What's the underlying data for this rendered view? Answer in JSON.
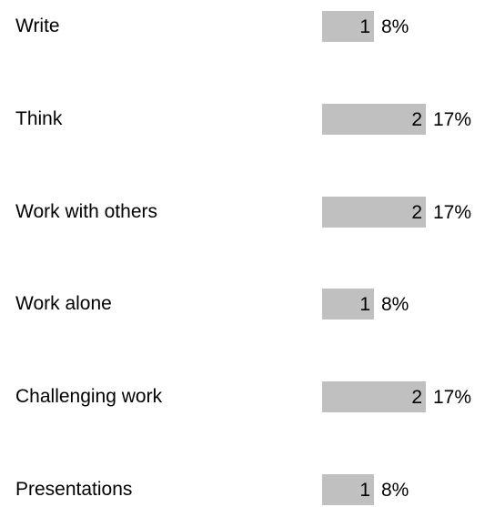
{
  "chart_data": {
    "type": "bar",
    "orientation": "horizontal",
    "categories": [
      "Write",
      "Think",
      "Work with others",
      "Work alone",
      "Challenging work",
      "Presentations"
    ],
    "values": [
      1,
      2,
      2,
      1,
      2,
      1
    ],
    "percent_labels": [
      "8%",
      "17%",
      "17%",
      "8%",
      "17%",
      "8%"
    ],
    "count_labels": [
      "1",
      "2",
      "2",
      "1",
      "2",
      "1"
    ],
    "value_max": 2,
    "bar_color": "#c0c0c0",
    "grid": false,
    "legend": "none"
  }
}
